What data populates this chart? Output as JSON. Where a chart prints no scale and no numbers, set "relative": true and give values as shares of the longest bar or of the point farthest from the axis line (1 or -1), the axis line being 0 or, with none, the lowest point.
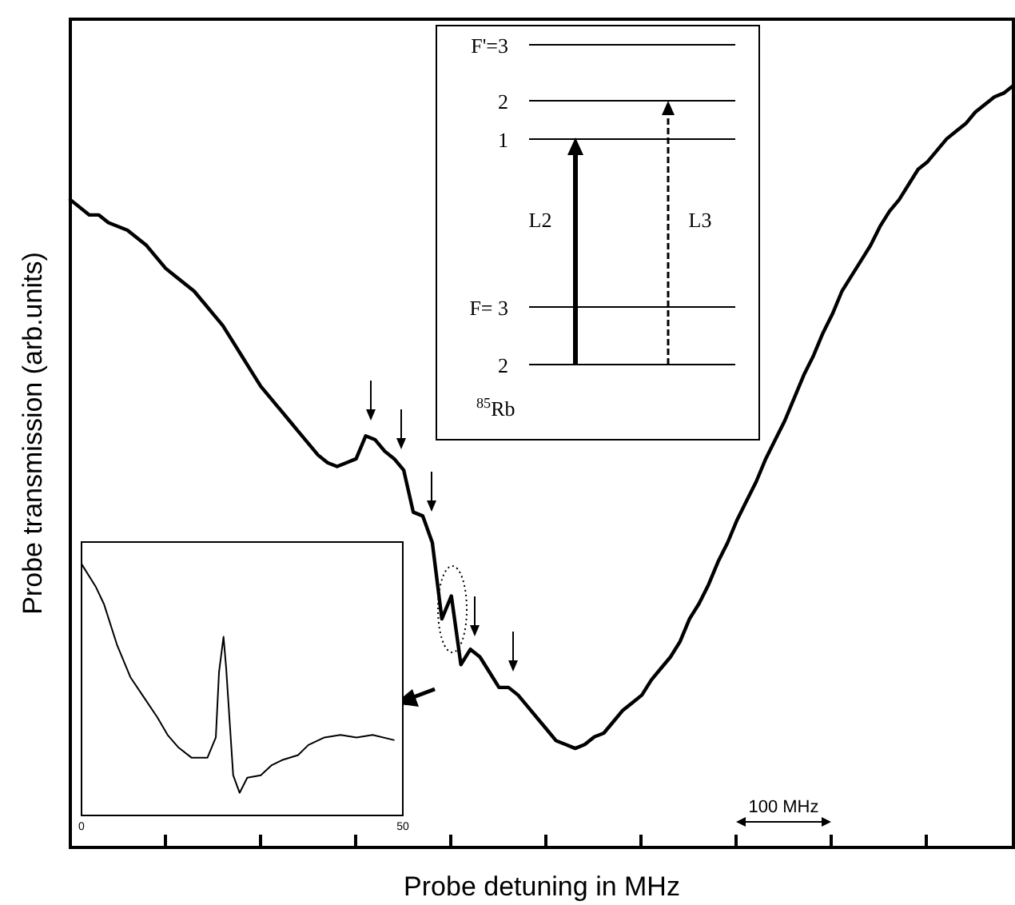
{
  "chart_data": [
    {
      "type": "line",
      "xlabel": "Probe detuning in MHz",
      "ylabel": "Probe transmission (arb.units)",
      "relative": true,
      "color": "#000000",
      "tick_labels": false,
      "categories": [
        null,
        null,
        null,
        null,
        null,
        null,
        null,
        null,
        null,
        null,
        null,
        null,
        null,
        null,
        null,
        null,
        null,
        null,
        null,
        null,
        null,
        null,
        null,
        null,
        null,
        null,
        null,
        null,
        null,
        null,
        null,
        null,
        null,
        null,
        null,
        null,
        null,
        null,
        null,
        null,
        null,
        null,
        null,
        null,
        null,
        null,
        null,
        null,
        null,
        null,
        null,
        null,
        null,
        null,
        null,
        null,
        null,
        null,
        null,
        null,
        null,
        null,
        null,
        null,
        null,
        null,
        null,
        null,
        null,
        null,
        null,
        null,
        null,
        null,
        null,
        null,
        null,
        null,
        null,
        null,
        null,
        null,
        null,
        null,
        null,
        null,
        null,
        null,
        null,
        null,
        null,
        null,
        null,
        null,
        null,
        null,
        null,
        null,
        null,
        null
      ],
      "values": [
        0.85,
        0.84,
        0.83,
        0.83,
        0.82,
        0.815,
        0.81,
        0.8,
        0.79,
        0.775,
        0.76,
        0.75,
        0.74,
        0.73,
        0.715,
        0.7,
        0.685,
        0.665,
        0.645,
        0.625,
        0.605,
        0.59,
        0.575,
        0.56,
        0.545,
        0.53,
        0.515,
        0.505,
        0.5,
        0.505,
        0.51,
        0.54,
        0.535,
        0.52,
        0.51,
        0.495,
        0.44,
        0.435,
        0.4,
        0.3,
        0.33,
        0.24,
        0.26,
        0.25,
        0.23,
        0.21,
        0.21,
        0.2,
        0.185,
        0.17,
        0.155,
        0.14,
        0.135,
        0.13,
        0.135,
        0.145,
        0.15,
        0.165,
        0.18,
        0.19,
        0.2,
        0.22,
        0.235,
        0.25,
        0.27,
        0.3,
        0.32,
        0.345,
        0.375,
        0.4,
        0.43,
        0.455,
        0.48,
        0.51,
        0.535,
        0.56,
        0.59,
        0.62,
        0.645,
        0.675,
        0.7,
        0.73,
        0.75,
        0.77,
        0.79,
        0.815,
        0.835,
        0.85,
        0.87,
        0.89,
        0.9,
        0.915,
        0.93,
        0.94,
        0.95,
        0.965,
        0.975,
        0.985,
        0.99,
        1.0
      ],
      "annotations": [
        "F'=3",
        "2",
        "1",
        "F= 3",
        "2",
        "$^{85}$Rb",
        "L2",
        "L3",
        "100 MHz"
      ]
    },
    {
      "type": "line",
      "relative": true,
      "color": "#000000",
      "xlim": [
        0,
        50
      ],
      "xticks": [
        0,
        50
      ],
      "tick_labels": "x",
      "x": [
        0,
        2.2,
        3.5,
        5.5,
        7.6,
        9.7,
        11.8,
        13.4,
        15.1,
        17.1,
        19.6,
        20.9,
        21.4,
        22.1,
        22.5,
        23.6,
        24.6,
        25.8,
        27.9,
        29.6,
        31.2,
        33.7,
        35.3,
        37.8,
        40.3,
        42.8,
        45.3,
        48.6
      ],
      "values": [
        1.0,
        0.91,
        0.84,
        0.68,
        0.55,
        0.47,
        0.39,
        0.32,
        0.27,
        0.23,
        0.23,
        0.31,
        0.57,
        0.71,
        0.59,
        0.16,
        0.09,
        0.15,
        0.16,
        0.2,
        0.22,
        0.24,
        0.28,
        0.31,
        0.32,
        0.31,
        0.32,
        0.3
      ]
    }
  ]
}
